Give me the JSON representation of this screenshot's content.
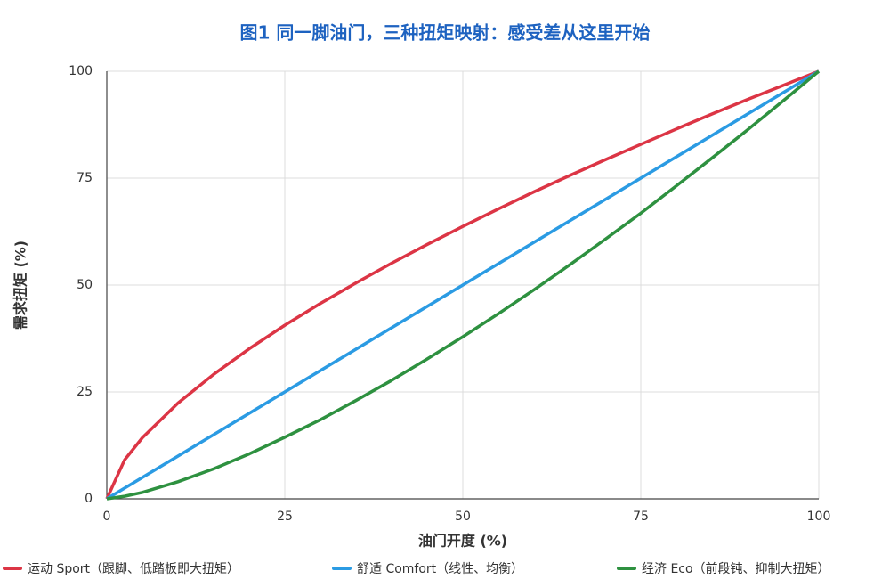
{
  "chart_data": {
    "type": "line",
    "title": "图1 同一脚油门，三种扭矩映射：感受差从这里开始",
    "x_label": "油门开度 (%)",
    "y_label": "需求扭矩 (%)",
    "x": [
      0,
      2.5,
      5,
      10,
      15,
      20,
      25,
      30,
      35,
      40,
      45,
      50,
      55,
      60,
      65,
      70,
      75,
      80,
      85,
      90,
      95,
      100
    ],
    "series": [
      {
        "name": "运动 Sport（跟脚、低踏板即大扭矩）",
        "color": "#dc3545",
        "values": [
          0,
          9.1,
          14.3,
          22.4,
          29.1,
          35.1,
          40.6,
          45.7,
          50.5,
          55.1,
          59.5,
          63.7,
          67.8,
          71.8,
          75.6,
          79.3,
          82.9,
          86.5,
          90.0,
          93.4,
          96.7,
          100
        ]
      },
      {
        "name": "舒适 Comfort（线性、均衡）",
        "color": "#2b9be3",
        "values": [
          0,
          2.5,
          5,
          10,
          15,
          20,
          25,
          30,
          35,
          40,
          45,
          50,
          55,
          60,
          65,
          70,
          75,
          80,
          85,
          90,
          95,
          100
        ]
      },
      {
        "name": "经济 Eco（前段钝、抑制大扭矩）",
        "color": "#2e9140",
        "values": [
          0,
          0.6,
          1.5,
          4.0,
          7.0,
          10.5,
          14.4,
          18.5,
          23.0,
          27.7,
          32.7,
          37.9,
          43.3,
          48.9,
          54.7,
          60.7,
          66.8,
          73.2,
          79.7,
          86.3,
          93.1,
          100
        ]
      }
    ],
    "xlim": [
      0,
      100
    ],
    "xticks": [
      0,
      25,
      50,
      75,
      100
    ],
    "ylim": [
      0,
      100
    ],
    "yticks": [
      0,
      25,
      50,
      75,
      100
    ],
    "grid": true,
    "legend": "bottom"
  }
}
